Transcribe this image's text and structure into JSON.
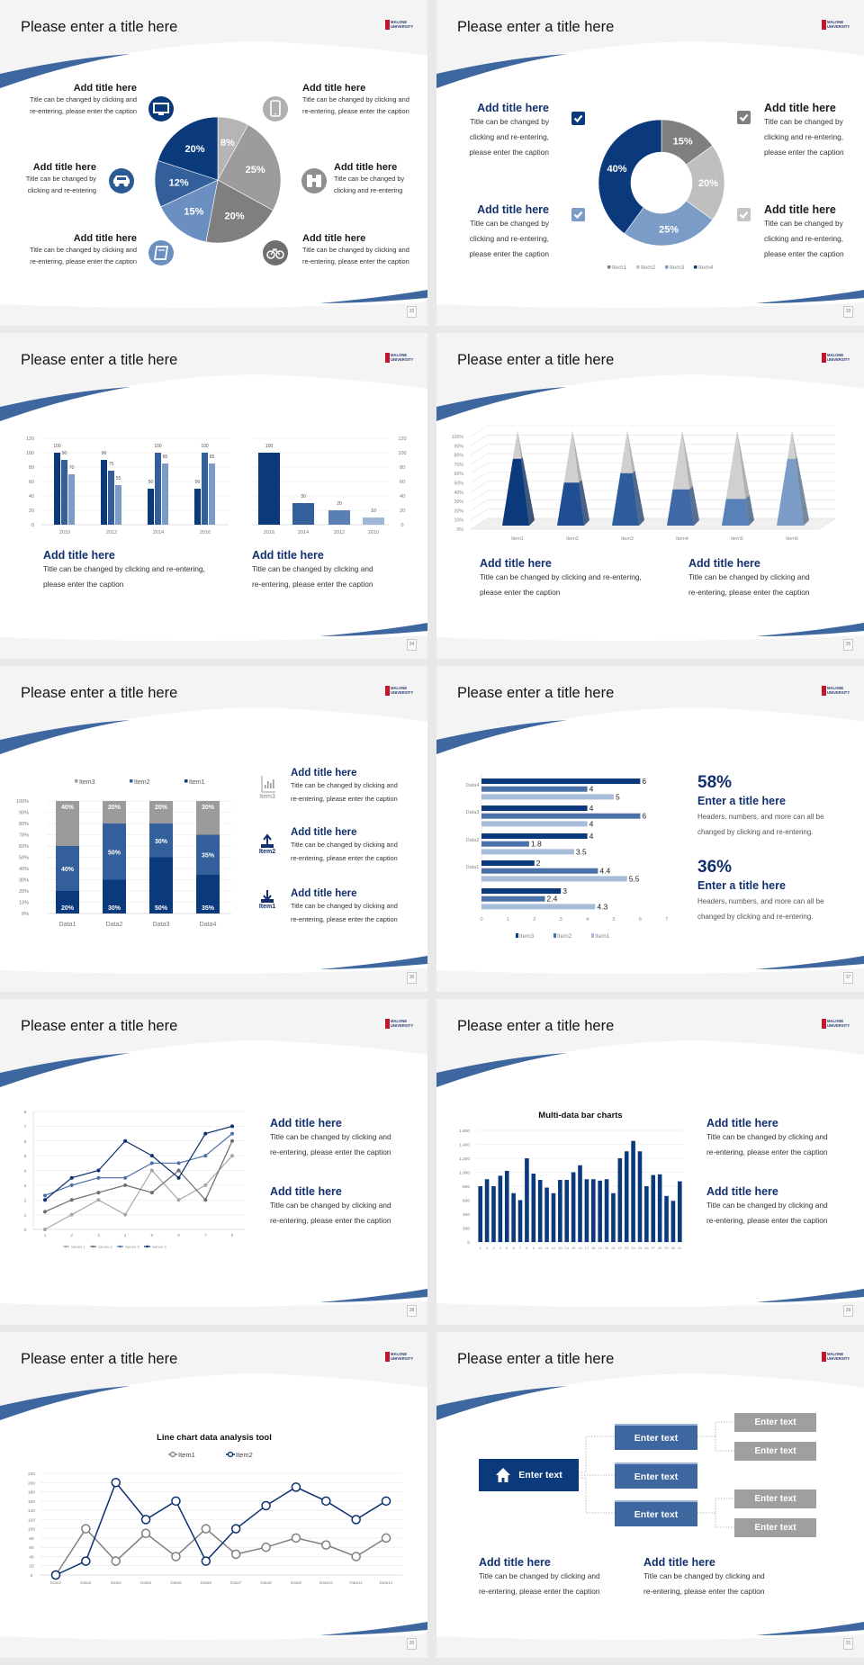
{
  "logo_text": "MALONE UNIVERSITY",
  "colors": {
    "navy": "#0b3a7c",
    "mid_blue": "#3e679f",
    "light_blue": "#7a9cc6",
    "grey": "#9f9f9f",
    "title_text": "#12306e"
  },
  "slides": [
    {
      "title": "Please enter a title here",
      "page": "32",
      "blocks": [
        {
          "title": "Add title here",
          "lines": [
            "Title can be changed by clicking and",
            "re-entering, please enter the caption"
          ],
          "icon": "monitor-icon"
        },
        {
          "title": "Add title here",
          "lines": [
            "Title can be changed by",
            "clicking and re-entering"
          ],
          "icon": "car-icon"
        },
        {
          "title": "Add title here",
          "lines": [
            "Title can be changed by clicking and",
            "re-entering, please enter the caption"
          ],
          "icon": "book-icon"
        },
        {
          "title": "Add title here",
          "lines": [
            "Title can be changed by clicking and",
            "re-entering, please enter the caption"
          ],
          "icon": "phone-icon"
        },
        {
          "title": "Add title here",
          "lines": [
            "Title can be changed by",
            "clicking and re-entering"
          ],
          "icon": "binoculars-icon"
        },
        {
          "title": "Add title here",
          "lines": [
            "Title can be changed by clicking and",
            "re-entering, please enter the caption"
          ],
          "icon": "bicycle-icon"
        }
      ]
    },
    {
      "title": "Please enter a title here",
      "page": "33",
      "blocks": [
        {
          "title": "Add title here",
          "lines": [
            "Title can be changed by",
            "clicking and re-entering,",
            "please enter the caption"
          ]
        },
        {
          "title": "Add title here",
          "lines": [
            "Title can be changed by",
            "clicking and re-entering,",
            "please enter the caption"
          ]
        },
        {
          "title": "Add title here",
          "lines": [
            "Title can be changed by",
            "clicking and re-entering,",
            "please enter the caption"
          ]
        },
        {
          "title": "Add title here",
          "lines": [
            "Title can be changed by",
            "clicking and re-entering,",
            "please enter the caption"
          ]
        }
      ]
    },
    {
      "title": "Please enter a title here",
      "page": "34",
      "blocks": [
        {
          "title": "Add title here",
          "lines": [
            "Title can be changed by clicking and re-entering,",
            "please enter the caption"
          ]
        },
        {
          "title": "Add title here",
          "lines": [
            "Title can be changed by clicking and",
            "re-entering, please enter the caption"
          ]
        }
      ]
    },
    {
      "title": "Please enter a title here",
      "page": "35",
      "blocks": [
        {
          "title": "Add title here",
          "lines": [
            "Title can be changed by clicking and re-entering,",
            "please enter the caption"
          ]
        },
        {
          "title": "Add title here",
          "lines": [
            "Title can be changed by clicking and",
            "re-entering, please enter the caption"
          ]
        }
      ]
    },
    {
      "title": "Please enter a title here",
      "page": "36",
      "icon_labels": [
        "Item3",
        "Item2",
        "Item1"
      ],
      "blocks": [
        {
          "title": "Add title here",
          "lines": [
            "Title can be changed by clicking and",
            "re-entering, please enter the caption"
          ],
          "icon": "bar-chart-icon"
        },
        {
          "title": "Add title here",
          "lines": [
            "Title can be changed by clicking and",
            "re-entering, please enter the caption"
          ],
          "icon": "upload-icon"
        },
        {
          "title": "Add title here",
          "lines": [
            "Title can be changed by clicking and",
            "re-entering, please enter the caption"
          ],
          "icon": "download-icon"
        }
      ]
    },
    {
      "title": "Please enter a title here",
      "page": "37",
      "stats": [
        {
          "value": "58%",
          "title": "Enter a title here",
          "lines": [
            "Headers, numbers, and more can all be",
            "changed by clicking and re-entering."
          ]
        },
        {
          "value": "36%",
          "title": "Enter a title here",
          "lines": [
            "Headers, numbers, and more can all be",
            "changed by clicking and re-entering."
          ]
        }
      ]
    },
    {
      "title": "Please enter a title here",
      "page": "38",
      "blocks": [
        {
          "title": "Add title here",
          "lines": [
            "Title can be changed by clicking and",
            "re-entering, please enter the caption"
          ]
        },
        {
          "title": "Add title here",
          "lines": [
            "Title can be changed by clicking and",
            "re-entering, please enter the caption"
          ]
        }
      ]
    },
    {
      "title": "Please enter a title here",
      "page": "39",
      "blocks": [
        {
          "title": "Add title here",
          "lines": [
            "Title can be changed by clicking and",
            "re-entering, please enter the caption"
          ]
        },
        {
          "title": "Add title here",
          "lines": [
            "Title can be changed by clicking and",
            "re-entering, please enter the caption"
          ]
        }
      ]
    },
    {
      "title": "Please enter a title here",
      "page": "20"
    },
    {
      "title": "Please enter a title here",
      "page": "21",
      "org": {
        "root": "Enter text",
        "mid": [
          "Enter text",
          "Enter text",
          "Enter text"
        ],
        "leaves": [
          "Enter text",
          "Enter text",
          "Enter text",
          "Enter text"
        ]
      },
      "blocks": [
        {
          "title": "Add title here",
          "lines": [
            "Title can be changed by clicking and",
            "re-entering, please enter the caption"
          ]
        },
        {
          "title": "Add title here",
          "lines": [
            "Title can be changed by clicking and",
            "re-entering, please enter the caption"
          ]
        }
      ]
    }
  ],
  "chart_data": [
    {
      "type": "pie",
      "values": [
        8,
        25,
        20,
        15,
        12,
        20
      ],
      "labels": [
        "8%",
        "25%",
        "20%",
        "15%",
        "12%",
        "20%"
      ],
      "colors": [
        "#b5b5b5",
        "#9c9c9c",
        "#7f7f7f",
        "#6a8fc0",
        "#33609a",
        "#0b3a7c"
      ]
    },
    {
      "type": "pie",
      "donut": true,
      "categories": [
        "Item1",
        "Item2",
        "Item3",
        "Item4"
      ],
      "values": [
        15,
        20,
        25,
        40
      ],
      "labels": [
        "15%",
        "20%",
        "25%",
        "40%"
      ],
      "colors": [
        "#7f7f7f",
        "#bfbfbf",
        "#7a9cc6",
        "#0b3a7c"
      ],
      "legend": "bottom"
    },
    {
      "type": "bar",
      "categories": [
        "2010",
        "2012",
        "2014",
        "2016"
      ],
      "series": [
        {
          "values": [
            100,
            90,
            50,
            50
          ],
          "color": "#0b3a7c"
        },
        {
          "values": [
            90,
            75,
            100,
            100
          ],
          "color": "#33609a"
        },
        {
          "values": [
            70,
            55,
            85,
            85
          ],
          "color": "#7a9cc6"
        }
      ],
      "ylim": [
        0,
        120
      ],
      "yticks": [
        "0",
        "20",
        "40",
        "60",
        "80",
        "100",
        "120"
      ],
      "grid": true
    },
    {
      "type": "bar",
      "categories": [
        "2016",
        "2014",
        "2012",
        "2010"
      ],
      "values": [
        100,
        30,
        20,
        10
      ],
      "colors": [
        "#0b3a7c",
        "#33609a",
        "#5a80b3",
        "#9fb6d6"
      ],
      "ylim": [
        0,
        120
      ],
      "yticks": [
        "0",
        "20",
        "40",
        "60",
        "80",
        "100",
        "120"
      ],
      "yaxis": "right",
      "grid": true
    },
    {
      "type": "bar",
      "style": "3d-pyramid",
      "categories": [
        "Item1",
        "Item2",
        "Item3",
        "Item4",
        "Item5",
        "Item6"
      ],
      "values": [
        70,
        45,
        55,
        38,
        28,
        70
      ],
      "colors": [
        "#0b3a7c",
        "#1f4e92",
        "#2e5d9e",
        "#3e69a6",
        "#5781b8",
        "#7a9cc6"
      ],
      "ylim": [
        0,
        100
      ],
      "yticks": [
        "0%",
        "10%",
        "20%",
        "30%",
        "40%",
        "50%",
        "60%",
        "70%",
        "80%",
        "90%",
        "100%"
      ],
      "grid": true
    },
    {
      "type": "bar",
      "stacked": true,
      "categories": [
        "Data1",
        "Data2",
        "Data3",
        "Data4"
      ],
      "series": [
        {
          "name": "Item1",
          "values": [
            20,
            30,
            50,
            35
          ],
          "labels": [
            "20%",
            "30%",
            "50%",
            "35%"
          ],
          "color": "#0b3a7c"
        },
        {
          "name": "Item2",
          "values": [
            40,
            50,
            30,
            35
          ],
          "labels": [
            "40%",
            "50%",
            "30%",
            "35%"
          ],
          "color": "#33609a"
        },
        {
          "name": "Item3",
          "values": [
            40,
            20,
            20,
            30
          ],
          "labels": [
            "40%",
            "20%",
            "20%",
            "30%"
          ],
          "color": "#9b9b9b"
        }
      ],
      "legend_order": [
        "Item3",
        "Item2",
        "Item1"
      ],
      "ylim": [
        0,
        100
      ],
      "yticks": [
        "0%",
        "10%",
        "20%",
        "30%",
        "40%",
        "50%",
        "60%",
        "70%",
        "80%",
        "90%",
        "100%"
      ],
      "legend": "top",
      "grid": true
    },
    {
      "type": "bar",
      "orientation": "horizontal",
      "categories": [
        "Data4",
        "Data3",
        "Data2",
        "Data1",
        ""
      ],
      "series": [
        {
          "name": "Item3",
          "values": [
            6,
            4,
            4,
            2,
            3
          ],
          "labels": [
            "6",
            "4",
            "4",
            "2",
            "3"
          ],
          "color": "#0b3a7c"
        },
        {
          "name": "Item2",
          "values": [
            4,
            6,
            1.8,
            4.4,
            2.4
          ],
          "labels": [
            "4",
            "6",
            "1.8",
            "4.4",
            "2.4"
          ],
          "color": "#4a72a8"
        },
        {
          "name": "Item1",
          "values": [
            5,
            4,
            3.5,
            5.5,
            4.3
          ],
          "labels": [
            "5",
            "4",
            "3.5",
            "5.5",
            "4.3"
          ],
          "color": "#a6bcd9"
        }
      ],
      "xlim": [
        0,
        7
      ],
      "xticks": [
        "0",
        "1",
        "2",
        "3",
        "4",
        "5",
        "6",
        "7"
      ],
      "legend": "bottom"
    },
    {
      "type": "line",
      "x": [
        "1",
        "2",
        "3",
        "4",
        "5",
        "6",
        "7",
        "8"
      ],
      "series": [
        {
          "name": "Series 1",
          "values": [
            0,
            1,
            2,
            1,
            4,
            2,
            3,
            5
          ],
          "color": "#a6a6a6"
        },
        {
          "name": "Series 2",
          "values": [
            1.2,
            2,
            2.5,
            3,
            2.5,
            4,
            2,
            6
          ],
          "color": "#6f6f6f"
        },
        {
          "name": "Series 3",
          "values": [
            2.3,
            3,
            3.5,
            3.5,
            4.5,
            4.5,
            5,
            6.5
          ],
          "color": "#4a72a8"
        },
        {
          "name": "Series 4",
          "values": [
            2,
            3.5,
            4,
            6,
            5,
            3.5,
            6.5,
            7
          ],
          "color": "#0b2f6e"
        }
      ],
      "ylim": [
        0,
        8
      ],
      "yticks": [
        "0",
        "1",
        "2",
        "3",
        "4",
        "5",
        "6",
        "7",
        "8"
      ],
      "legend": "bottom",
      "grid": true
    },
    {
      "type": "bar",
      "title": "Multi-data bar charts",
      "categories": [
        "1",
        "2",
        "3",
        "4",
        "5",
        "6",
        "7",
        "8",
        "9",
        "10",
        "11",
        "12",
        "13",
        "14",
        "15",
        "16",
        "17",
        "18",
        "19",
        "20",
        "21",
        "22",
        "23",
        "24",
        "25",
        "26",
        "27",
        "28",
        "29",
        "30",
        "31"
      ],
      "values": [
        800,
        900,
        800,
        950,
        1020,
        700,
        600,
        1200,
        980,
        890,
        780,
        700,
        890,
        890,
        1000,
        1100,
        900,
        900,
        880,
        900,
        700,
        1200,
        1300,
        1450,
        1300,
        800,
        960,
        970,
        660,
        590,
        870
      ],
      "color": "#0b3a7c",
      "ylim": [
        0,
        1600
      ],
      "yticks": [
        "0",
        "200",
        "400",
        "600",
        "800",
        "1,000",
        "1,200",
        "1,400",
        "1,600"
      ],
      "grid": true
    },
    {
      "type": "line",
      "title": "Line chart data analysis tool",
      "x": [
        "Data1",
        "Data2",
        "Data3",
        "Data4",
        "Data5",
        "Data6",
        "Data7",
        "Data8",
        "Data9",
        "Data10",
        "Data11",
        "Data12"
      ],
      "series": [
        {
          "name": "Item1",
          "values": [
            0,
            100,
            30,
            90,
            40,
            100,
            45,
            60,
            80,
            65,
            40,
            80
          ],
          "color": "#7f7f7f"
        },
        {
          "name": "Item2",
          "values": [
            0,
            30,
            200,
            120,
            160,
            30,
            100,
            150,
            190,
            160,
            120,
            160
          ],
          "color": "#0b2f6e"
        }
      ],
      "ylim": [
        0,
        220
      ],
      "yticks": [
        "0",
        "20",
        "40",
        "60",
        "80",
        "100",
        "120",
        "140",
        "160",
        "180",
        "200",
        "220"
      ],
      "legend": "top",
      "grid": true
    }
  ]
}
